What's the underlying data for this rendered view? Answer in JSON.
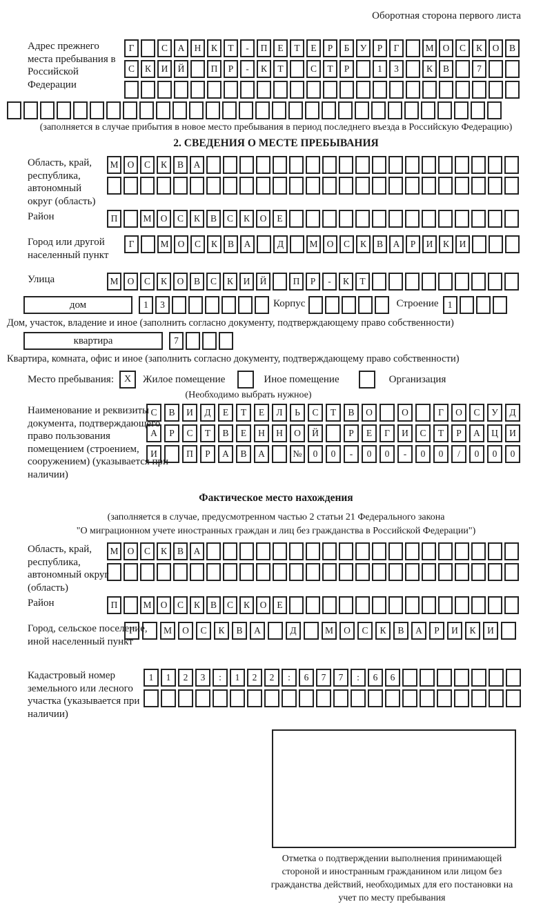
{
  "header": {
    "note": "Оборотная сторона первого листа"
  },
  "prev_address": {
    "label": "Адрес прежнего места пребывания в Российской Федерации",
    "row1": [
      "Г",
      "",
      "С",
      "А",
      "Н",
      "К",
      "Т",
      "-",
      "П",
      "Е",
      "Т",
      "Е",
      "Р",
      "Б",
      "У",
      "Р",
      "Г",
      "",
      "М",
      "О",
      "С",
      "К",
      "О",
      "В"
    ],
    "row2": [
      "С",
      "К",
      "И",
      "Й",
      "",
      "П",
      "Р",
      "-",
      "К",
      "Т",
      "",
      "С",
      "Т",
      "Р",
      "",
      "1",
      "3",
      "",
      "К",
      "В",
      "",
      "7",
      "",
      ""
    ],
    "row3": [
      "",
      "",
      "",
      "",
      "",
      "",
      "",
      "",
      "",
      "",
      "",
      "",
      "",
      "",
      "",
      "",
      "",
      "",
      "",
      "",
      "",
      "",
      "",
      ""
    ],
    "row4": [
      "",
      "",
      "",
      "",
      "",
      "",
      "",
      "",
      "",
      "",
      "",
      "",
      "",
      "",
      "",
      "",
      "",
      "",
      "",
      "",
      "",
      "",
      "",
      "",
      "",
      "",
      "",
      "",
      "",
      ""
    ],
    "caption": "(заполняется в случае прибытия в новое место пребывания в период последнего въезда в Российскую Федерацию)"
  },
  "section2": {
    "title": "2. СВЕДЕНИЯ О МЕСТЕ ПРЕБЫВАНИЯ",
    "region": {
      "label": "Область, край, республика, автономный округ (область)",
      "row1": [
        "М",
        "О",
        "С",
        "К",
        "В",
        "А",
        "",
        "",
        "",
        "",
        "",
        "",
        "",
        "",
        "",
        "",
        "",
        "",
        "",
        "",
        "",
        "",
        "",
        "",
        ""
      ],
      "row2": [
        "",
        "",
        "",
        "",
        "",
        "",
        "",
        "",
        "",
        "",
        "",
        "",
        "",
        "",
        "",
        "",
        "",
        "",
        "",
        "",
        "",
        "",
        "",
        "",
        ""
      ]
    },
    "district": {
      "label": "Район",
      "cells": [
        "П",
        "",
        "М",
        "О",
        "С",
        "К",
        "В",
        "С",
        "К",
        "О",
        "Е",
        "",
        "",
        "",
        "",
        "",
        "",
        "",
        "",
        "",
        "",
        "",
        "",
        "",
        ""
      ]
    },
    "city": {
      "label": "Город или другой населенный пункт",
      "cells": [
        "Г",
        "",
        "М",
        "О",
        "С",
        "К",
        "В",
        "А",
        "",
        "Д",
        "",
        "М",
        "О",
        "С",
        "К",
        "В",
        "А",
        "Р",
        "И",
        "К",
        "И",
        "",
        "",
        ""
      ]
    },
    "street": {
      "label": "Улица",
      "cells": [
        "М",
        "О",
        "С",
        "К",
        "О",
        "В",
        "С",
        "К",
        "И",
        "Й",
        "",
        "П",
        "Р",
        "-",
        "К",
        "Т",
        "",
        "",
        "",
        "",
        "",
        "",
        "",
        "",
        ""
      ]
    },
    "house": {
      "box_label": "дом",
      "number_cells": [
        "1",
        "3",
        "",
        "",
        "",
        "",
        "",
        ""
      ],
      "korpus_label": "Корпус",
      "korpus_cells": [
        "",
        "",
        "",
        "",
        ""
      ],
      "stroenie_label": "Строение",
      "stroenie_cells": [
        "1",
        "",
        "",
        ""
      ],
      "caption": "Дом, участок, владение и иное (заполнить согласно документу, подтверждающему право собственности)"
    },
    "apartment": {
      "box_label": "квартира",
      "cells": [
        "7",
        "",
        "",
        ""
      ],
      "caption": "Квартира, комната, офис и иное (заполнить согласно документу, подтверждающему право собственности)"
    },
    "stay_type": {
      "label": "Место пребывания:",
      "checked1": "X",
      "option1": "Жилое помещение",
      "checked2": "",
      "option2": "Иное помещение",
      "checked3": "",
      "option3": "Организация",
      "hint": "(Необходимо выбрать нужное)"
    },
    "document": {
      "label": "Наименование и реквизиты документа, подтверждающего право пользования помещением (строением, сооружением) (указывается при наличии)",
      "row1": [
        "С",
        "В",
        "И",
        "Д",
        "Е",
        "Т",
        "Е",
        "Л",
        "Ь",
        "С",
        "Т",
        "В",
        "О",
        "",
        "О",
        "",
        "Г",
        "О",
        "С",
        "У",
        "Д"
      ],
      "row2": [
        "А",
        "Р",
        "С",
        "Т",
        "В",
        "Е",
        "Н",
        "Н",
        "О",
        "Й",
        "",
        "Р",
        "Е",
        "Г",
        "И",
        "С",
        "Т",
        "Р",
        "А",
        "Ц",
        "И"
      ],
      "row3": [
        "И",
        "",
        "П",
        "Р",
        "А",
        "В",
        "А",
        "",
        "№",
        "0",
        "0",
        "-",
        "0",
        "0",
        "-",
        "0",
        "0",
        "/",
        "0",
        "0",
        "0"
      ]
    }
  },
  "actual_location": {
    "title": "Фактическое место нахождения",
    "note_line1": "(заполняется в случае, предусмотренном частью 2 статьи 21 Федерального закона",
    "note_line2": "\"О миграционном учете иностранных граждан и лиц без гражданства в Российской Федерации\")",
    "region": {
      "label": "Область, край, республика, автономный округ (область)",
      "row1": [
        "М",
        "О",
        "С",
        "К",
        "В",
        "А",
        "",
        "",
        "",
        "",
        "",
        "",
        "",
        "",
        "",
        "",
        "",
        "",
        "",
        "",
        "",
        "",
        "",
        "",
        ""
      ],
      "row2": [
        "",
        "",
        "",
        "",
        "",
        "",
        "",
        "",
        "",
        "",
        "",
        "",
        "",
        "",
        "",
        "",
        "",
        "",
        "",
        "",
        "",
        "",
        "",
        "",
        ""
      ]
    },
    "district": {
      "label": "Район",
      "cells": [
        "П",
        "",
        "М",
        "О",
        "С",
        "К",
        "В",
        "С",
        "К",
        "О",
        "Е",
        "",
        "",
        "",
        "",
        "",
        "",
        "",
        "",
        "",
        "",
        "",
        "",
        "",
        ""
      ]
    },
    "city": {
      "label": "Город, сельское поселение, иной населенный пункт",
      "cells": [
        "Г",
        "",
        "М",
        "О",
        "С",
        "К",
        "В",
        "А",
        "",
        "Д",
        "",
        "М",
        "О",
        "С",
        "К",
        "В",
        "А",
        "Р",
        "И",
        "К",
        "И",
        ""
      ]
    },
    "cadastral": {
      "label": "Кадастровый номер земельного или лесного участка (указывается при наличии)",
      "row1": [
        "1",
        "1",
        "2",
        "3",
        ":",
        "1",
        "2",
        "2",
        ":",
        "6",
        "7",
        "7",
        ":",
        "6",
        "6",
        "",
        "",
        "",
        "",
        "",
        "",
        ""
      ],
      "row2": [
        "",
        "",
        "",
        "",
        "",
        "",
        "",
        "",
        "",
        "",
        "",
        "",
        "",
        "",
        "",
        "",
        "",
        "",
        "",
        "",
        "",
        ""
      ]
    },
    "confirmation_caption": "Отметка о подтверждении выполнения принимающей стороной и иностранным гражданином или лицом без гражданства действий, необходимых для его постановки на учет по месту пребывания"
  }
}
